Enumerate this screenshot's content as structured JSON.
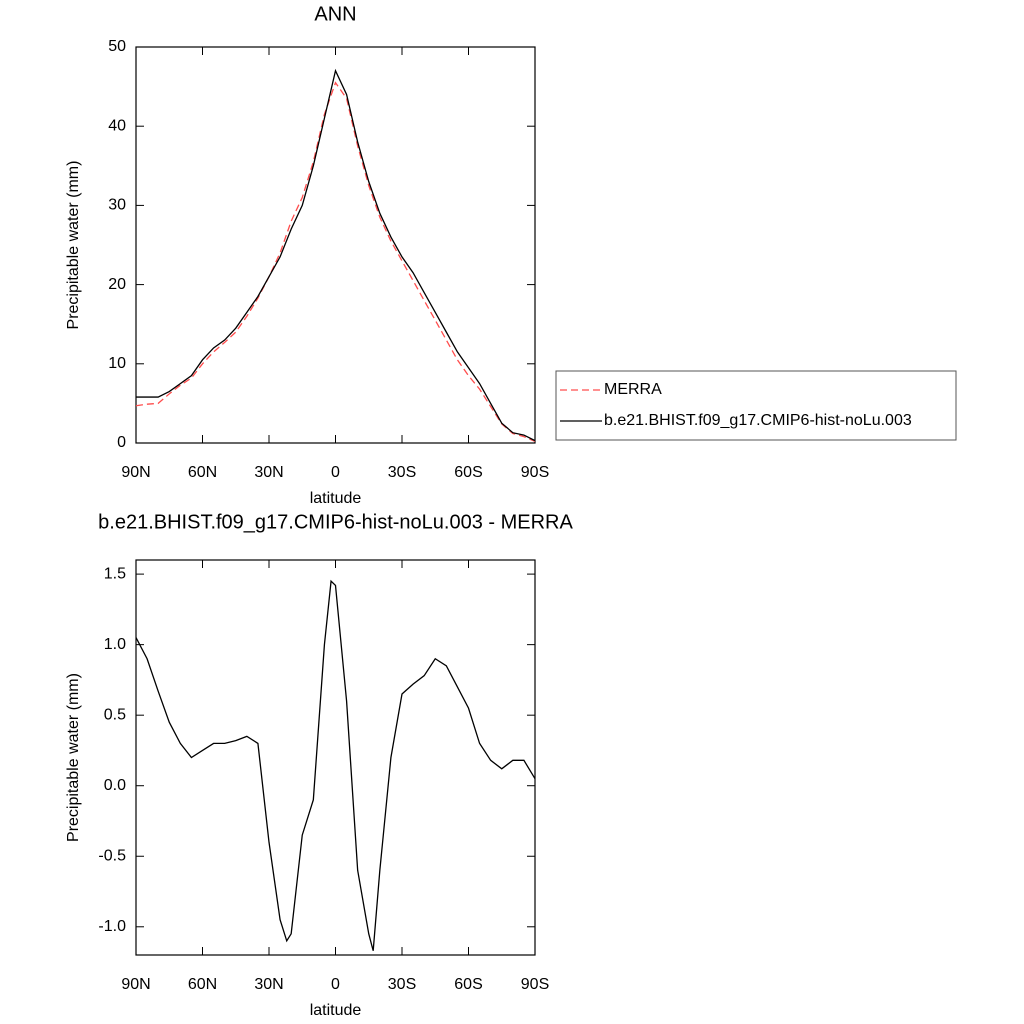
{
  "chart_data": [
    {
      "type": "line",
      "title": "ANN",
      "xlabel": "latitude",
      "ylabel": "Precipitable water (mm)",
      "x": [
        90,
        85,
        80,
        75,
        70,
        65,
        60,
        55,
        50,
        45,
        40,
        35,
        30,
        25,
        20,
        15,
        10,
        5,
        0,
        -5,
        -10,
        -15,
        -20,
        -25,
        -30,
        -35,
        -40,
        -45,
        -50,
        -55,
        -60,
        -65,
        -70,
        -75,
        -80,
        -85,
        -90
      ],
      "series": [
        {
          "name": "MERRA",
          "color": "#ff4d4d",
          "style": "dashed",
          "values": [
            4.7,
            4.9,
            5.0,
            6.2,
            7.3,
            8.2,
            10,
            11.5,
            12.7,
            14,
            16,
            18.3,
            21,
            24,
            28,
            31,
            35.5,
            41.5,
            45.5,
            43.5,
            37.5,
            32.5,
            28.5,
            25.5,
            23,
            20.5,
            18,
            15.5,
            13,
            10.5,
            8.5,
            6.8,
            4.6,
            2.4,
            1.2,
            0.8,
            0.2
          ]
        },
        {
          "name": "b.e21.BHIST.f09_g17.CMIP6-hist-noLu.003",
          "color": "#000000",
          "style": "solid",
          "values": [
            5.8,
            5.8,
            5.8,
            6.5,
            7.5,
            8.5,
            10.5,
            12,
            13,
            14.5,
            16.5,
            18.5,
            21,
            23.5,
            27,
            30,
            35,
            41,
            47,
            44,
            38,
            33,
            29,
            26,
            23.5,
            21.5,
            19,
            16.5,
            14,
            11.5,
            9.5,
            7.5,
            5,
            2.5,
            1.3,
            1,
            0.3
          ]
        }
      ],
      "xlim": [
        90,
        -90
      ],
      "xticks": [
        {
          "value": 90,
          "label": "90N"
        },
        {
          "value": 60,
          "label": "60N"
        },
        {
          "value": 30,
          "label": "30N"
        },
        0,
        {
          "value": -30,
          "label": "30S"
        },
        {
          "value": -60,
          "label": "60S"
        },
        {
          "value": -90,
          "label": "90S"
        }
      ],
      "ylim": [
        0,
        50
      ],
      "yticks": [
        0,
        10,
        20,
        30,
        40,
        50
      ],
      "legend": "right"
    },
    {
      "type": "line",
      "title": "b.e21.BHIST.f09_g17.CMIP6-hist-noLu.003 - MERRA",
      "xlabel": "latitude",
      "ylabel": "Precipitable water (mm)",
      "x": [
        90,
        85,
        80,
        75,
        70,
        65,
        60,
        55,
        50,
        45,
        40,
        35,
        30,
        25,
        22,
        20,
        15,
        10,
        5,
        2,
        0,
        -5,
        -10,
        -15,
        -17,
        -20,
        -25,
        -30,
        -35,
        -40,
        -45,
        -50,
        -55,
        -60,
        -65,
        -70,
        -75,
        -80,
        -85,
        -90
      ],
      "series": [
        {
          "color": "#000000",
          "style": "solid",
          "values": [
            1.05,
            0.9,
            0.67,
            0.45,
            0.3,
            0.2,
            0.25,
            0.3,
            0.3,
            0.32,
            0.35,
            0.3,
            -0.4,
            -0.95,
            -1.1,
            -1.05,
            -0.35,
            -0.1,
            1.0,
            1.45,
            1.42,
            0.6,
            -0.6,
            -1.05,
            -1.17,
            -0.6,
            0.2,
            0.65,
            0.72,
            0.78,
            0.9,
            0.85,
            0.7,
            0.55,
            0.3,
            0.18,
            0.12,
            0.18,
            0.18,
            0.05
          ]
        }
      ],
      "xlim": [
        90,
        -90
      ],
      "xticks": [
        {
          "value": 90,
          "label": "90N"
        },
        {
          "value": 60,
          "label": "60N"
        },
        {
          "value": 30,
          "label": "30N"
        },
        0,
        {
          "value": -30,
          "label": "30S"
        },
        {
          "value": -60,
          "label": "60S"
        },
        {
          "value": -90,
          "label": "90S"
        }
      ],
      "ylim": [
        -1.2,
        1.6
      ],
      "yticks": [
        {
          "value": -1,
          "label": "-1.0"
        },
        -0.5,
        {
          "value": 0,
          "label": "0.0"
        },
        0.5,
        {
          "value": 1,
          "label": "1.0"
        },
        1.5
      ]
    }
  ]
}
